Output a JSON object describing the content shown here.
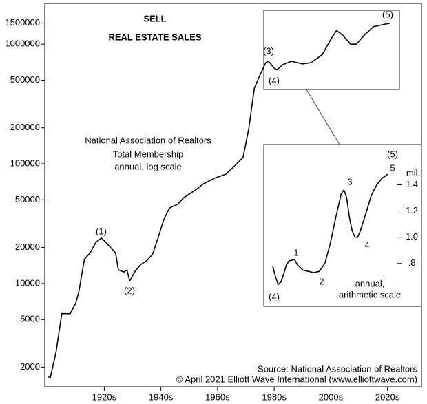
{
  "chart_data": [
    {
      "type": "line",
      "log_scale": true,
      "title": [
        "SELL",
        "REAL ESTATE SALES"
      ],
      "notes": [
        "National Association of Realtors",
        "Total Membership",
        "annual, log scale"
      ],
      "source": [
        "Source: National Association of Realtors",
        "© April 2021 Elliott Wave International (www.elliottwave.com)"
      ],
      "annotations": [
        "(1)",
        "(2)",
        "(3)",
        "(4)",
        "(5)"
      ],
      "color": "#000000",
      "x": [
        1900,
        1901,
        1903,
        1905,
        1908,
        1910,
        1911,
        1913,
        1915,
        1917,
        1919,
        1921,
        1924,
        1925,
        1927,
        1928,
        1929,
        1931,
        1933,
        1935,
        1937,
        1939,
        1941,
        1943,
        1946,
        1948,
        1952,
        1955,
        1959,
        1963,
        1966,
        1969,
        1971,
        1973,
        1975,
        1977,
        1978,
        1980,
        1981,
        1983,
        1986,
        1990,
        1993,
        1997,
        2000,
        2002,
        2004,
        2007,
        2009,
        2012,
        2015,
        2018,
        2021
      ],
      "values": [
        1650,
        1650,
        2700,
        5600,
        5600,
        6900,
        8500,
        16000,
        18000,
        22000,
        24000,
        21500,
        18000,
        13000,
        12500,
        13000,
        10500,
        12800,
        14500,
        15500,
        17500,
        24000,
        34000,
        42800,
        46000,
        52000,
        60000,
        68000,
        76000,
        82000,
        96000,
        113000,
        195000,
        427000,
        555000,
        700000,
        720000,
        630000,
        610000,
        675000,
        720000,
        685000,
        700000,
        820000,
        1100000,
        1300000,
        1200000,
        1000000,
        1000000,
        1200000,
        1400000,
        1450000,
        1500000
      ],
      "xlim": [
        1899,
        2032
      ],
      "xticks": [
        {
          "value": 1920,
          "label": "1920s"
        },
        {
          "value": 1940,
          "label": "1940s"
        },
        {
          "value": 1960,
          "label": "1960s"
        },
        {
          "value": 1980,
          "label": "1980s"
        },
        {
          "value": 2000,
          "label": "2000s"
        },
        {
          "value": 2020,
          "label": "2020s"
        }
      ],
      "ylim": [
        1370,
        2190000
      ],
      "yticks": [
        1500000,
        1000000,
        500000,
        200000,
        100000,
        50000,
        20000,
        10000,
        5000,
        2000
      ]
    },
    {
      "type": "line",
      "log_scale": false,
      "notes": [
        "annual,",
        "arithmetic scale"
      ],
      "y_label": "mil.",
      "annotations": [
        "(4)",
        "1",
        "2",
        "3",
        "4",
        "5",
        "(5)"
      ],
      "color": "#000000",
      "x": [
        1978,
        1979,
        1980,
        1981,
        1982,
        1983,
        1984,
        1986,
        1987,
        1989,
        1991,
        1993,
        1995,
        1997,
        1999,
        2001,
        2003,
        2004,
        2005,
        2006,
        2007,
        2008,
        2009,
        2010,
        2012,
        2014,
        2016,
        2018,
        2020
      ],
      "values": [
        0.78,
        0.7,
        0.64,
        0.66,
        0.72,
        0.79,
        0.82,
        0.83,
        0.79,
        0.75,
        0.74,
        0.73,
        0.74,
        0.8,
        0.95,
        1.15,
        1.33,
        1.36,
        1.3,
        1.15,
        1.05,
        1.0,
        1.0,
        1.05,
        1.18,
        1.32,
        1.4,
        1.45,
        1.48
      ],
      "xlim": [
        1976,
        2023
      ],
      "ylim": [
        0.5,
        1.68
      ],
      "yticks": [
        {
          "value": 0.8,
          "label": ".8"
        },
        {
          "value": 1,
          "label": "1.0"
        },
        {
          "value": 1.2,
          "label": "1.2"
        },
        {
          "value": 1.4,
          "label": "1.4"
        }
      ]
    }
  ]
}
